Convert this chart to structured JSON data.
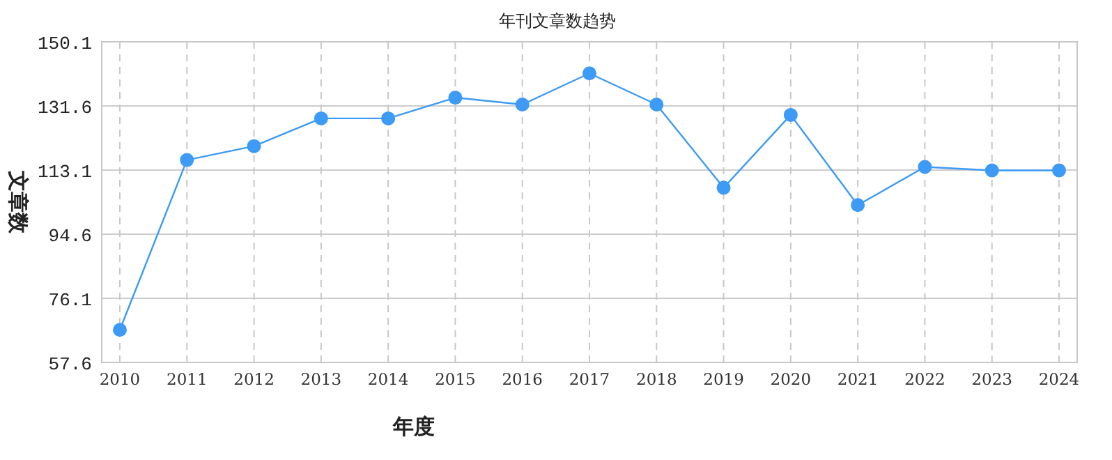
{
  "chart_data": {
    "type": "line",
    "title": "年刊文章数趋势",
    "xlabel": "年度",
    "ylabel": "文章数",
    "categories": [
      "2010",
      "2011",
      "2012",
      "2013",
      "2014",
      "2015",
      "2016",
      "2017",
      "2018",
      "2019",
      "2020",
      "2021",
      "2022",
      "2023",
      "2024"
    ],
    "series": [
      {
        "color": "#3d9af5",
        "values": [
          67,
          116,
          120,
          128,
          128,
          134,
          132,
          141,
          132,
          108,
          129,
          103,
          114,
          113,
          113
        ]
      }
    ],
    "ylim": [
      57.6,
      150.1
    ],
    "yticks": [
      57.6,
      76.1,
      94.6,
      113.1,
      131.6,
      150.1
    ],
    "grid": true,
    "marker": "circle",
    "line_style": "solid"
  }
}
